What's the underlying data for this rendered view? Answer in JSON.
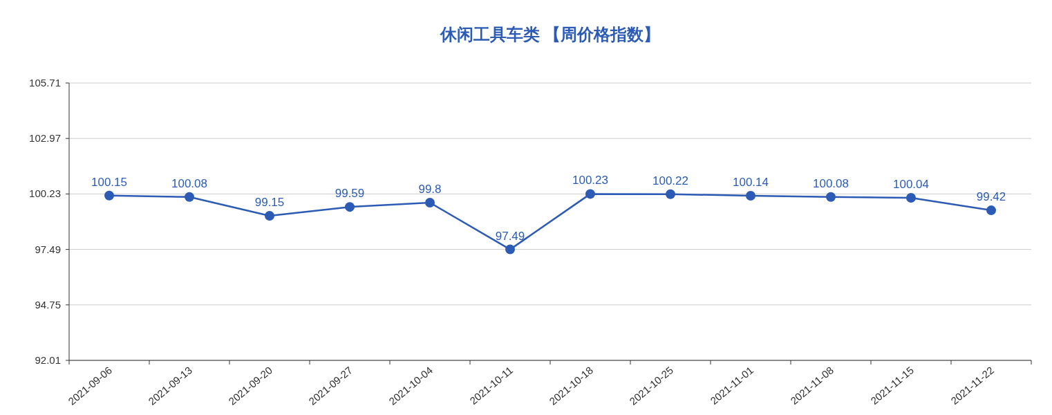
{
  "chart_data": {
    "type": "line",
    "title": "休闲工具车类 【周价格指数】",
    "categories": [
      "2021-09-06",
      "2021-09-13",
      "2021-09-20",
      "2021-09-27",
      "2021-10-04",
      "2021-10-11",
      "2021-10-18",
      "2021-10-25",
      "2021-11-01",
      "2021-11-08",
      "2021-11-15",
      "2021-11-22"
    ],
    "values": [
      100.15,
      100.08,
      99.15,
      99.59,
      99.8,
      97.49,
      100.23,
      100.22,
      100.14,
      100.08,
      100.04,
      99.42
    ],
    "color": "#2b5bb5",
    "ylim": [
      92.01,
      105.71
    ],
    "yticks": [
      92.01,
      94.75,
      97.49,
      100.23,
      102.97,
      105.71
    ],
    "grid": "y",
    "data_labels": true,
    "marker": "circle"
  }
}
